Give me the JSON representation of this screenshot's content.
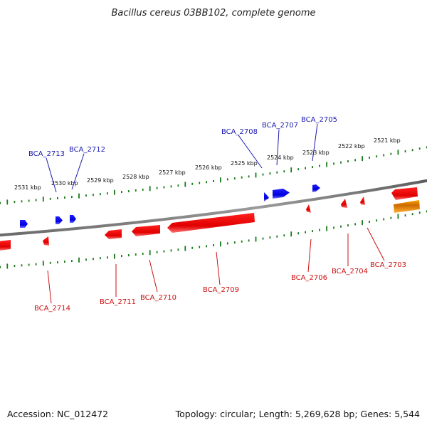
{
  "title": "Bacillus cereus 03BB102, complete genome",
  "footer": {
    "accession": "Accession: NC_012472",
    "summary": "Topology: circular; Length: 5,269,628 bp; Genes: 5,544"
  },
  "colors": {
    "forward_gene": "#0000ee",
    "reverse_gene": "#ee0000",
    "rna_gene": "#ff8c00",
    "backbone": "#7a7a7a",
    "tick": "#1a7a1a",
    "forward_label": "#1a1ab0",
    "reverse_label": "#cc1111"
  },
  "tick_labels": [
    "2531 kbp",
    "2530 kbp",
    "2529 kbp",
    "2528 kbp",
    "2527 kbp",
    "2526 kbp",
    "2525 kbp",
    "2524 kbp",
    "2523 kbp",
    "2522 kbp",
    "2521 kbp"
  ],
  "genes_forward": [
    "BCA_2713",
    "BCA_2712",
    "BCA_2708",
    "BCA_2707",
    "BCA_2705"
  ],
  "genes_reverse": [
    "BCA_2714",
    "BCA_2711",
    "BCA_2710",
    "BCA_2709",
    "BCA_2706",
    "BCA_2704",
    "BCA_2703"
  ]
}
